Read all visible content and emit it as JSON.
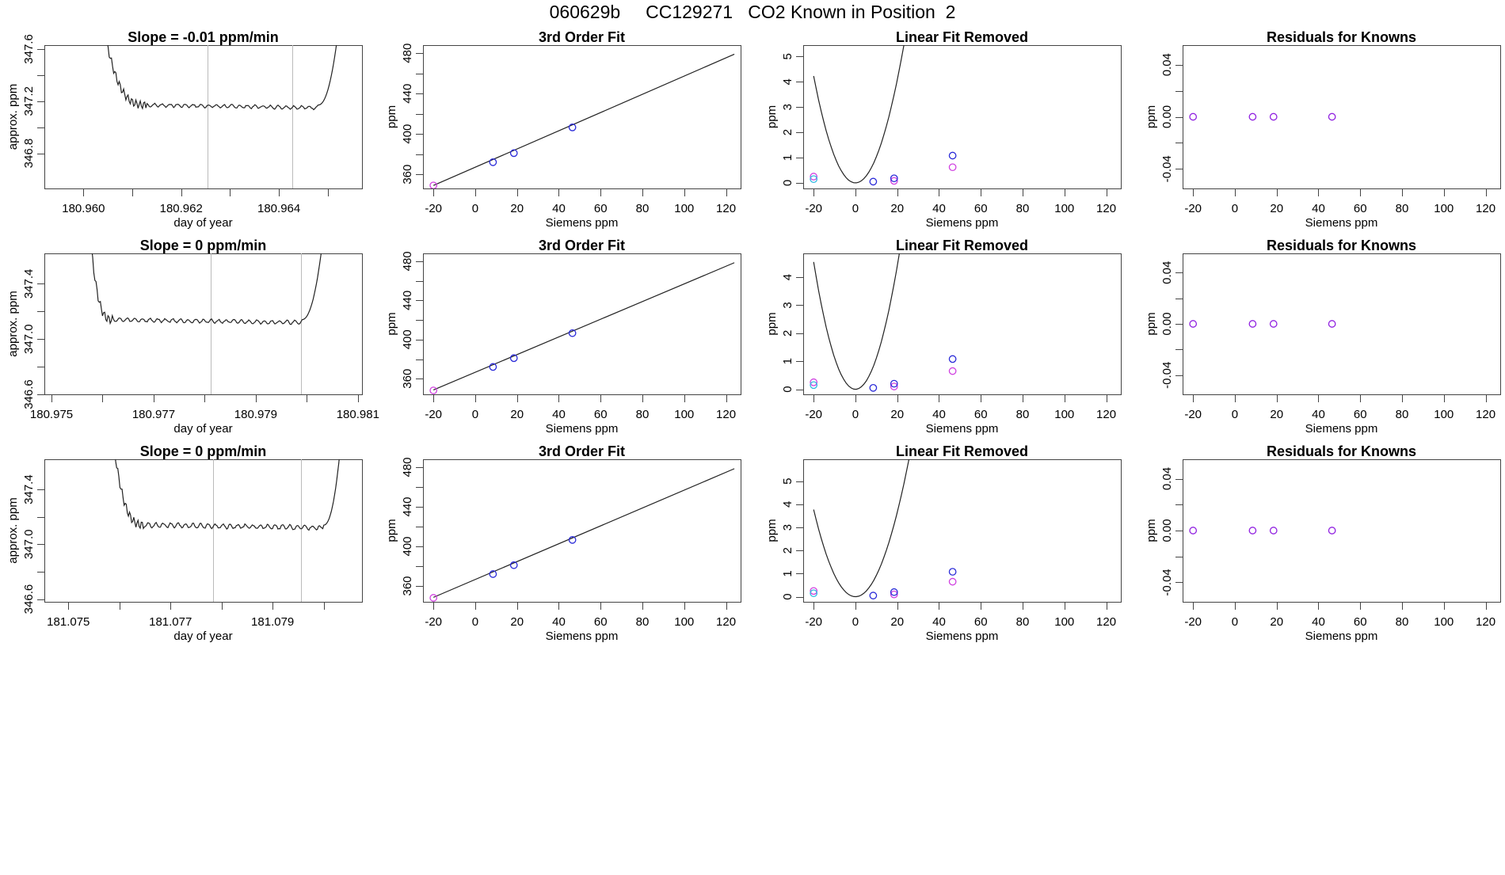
{
  "page_title": "060629b     CC129271   CO2 Known in Position  2",
  "colors": {
    "curve": "#222222",
    "frame": "#444444",
    "vline": "#bbbbbb",
    "blue": "#2a2ad8",
    "magenta": "#d040e0",
    "cyan": "#30b8e0",
    "purple": "#9020e0",
    "red": "#e03030"
  },
  "chart_data": [
    {
      "type": "line",
      "row": 0,
      "col": 0,
      "title": "Slope =  -0.01  ppm/min",
      "xlabel": "day of year",
      "ylabel": "approx. ppm",
      "xlim": [
        180.9592,
        180.9657
      ],
      "ylim": [
        346.53,
        347.63
      ],
      "xticks": [
        180.96,
        180.961,
        180.962,
        180.963,
        180.964,
        180.965
      ],
      "xtick_labels": [
        "180.960",
        "",
        "180.962",
        "",
        "180.964",
        ""
      ],
      "yticks": [
        346.8,
        347.0,
        347.2,
        347.4,
        347.6
      ],
      "ytick_labels": [
        "346.8",
        "",
        "347.2",
        "",
        "347.6"
      ],
      "vlines": [
        180.96254,
        180.96427
      ],
      "baseline": 347.17,
      "noise": 0.012,
      "x_start": 180.9603,
      "x_end": 180.9653,
      "plateau": [
        180.9613,
        180.9648
      ]
    },
    {
      "type": "scatter-line",
      "row": 0,
      "col": 1,
      "title": "3rd Order Fit",
      "xlabel": "Siemens ppm",
      "ylabel": "ppm",
      "xlim": [
        -25,
        127
      ],
      "ylim": [
        346,
        488
      ],
      "xticks": [
        -20,
        0,
        20,
        40,
        60,
        80,
        100,
        120
      ],
      "yticks": [
        360,
        380,
        400,
        420,
        440,
        460,
        480
      ],
      "ytick_labels": [
        "360",
        "",
        "400",
        "",
        "440",
        "",
        "480"
      ],
      "line": {
        "x": [
          -20,
          124
        ],
        "y": [
          349.0,
          479.0
        ]
      },
      "points": [
        {
          "x": -20,
          "y": 349.0,
          "c": "magenta"
        },
        {
          "x": 8.5,
          "y": 372.0,
          "c": "blue"
        },
        {
          "x": 18.5,
          "y": 381.0,
          "c": "blue"
        },
        {
          "x": 46.5,
          "y": 406.5,
          "c": "blue"
        }
      ]
    },
    {
      "type": "scatter-line",
      "row": 0,
      "col": 2,
      "title": "Linear Fit Removed",
      "xlabel": "Siemens ppm",
      "ylabel": "ppm",
      "xlim": [
        -25,
        127
      ],
      "ylim": [
        -0.22,
        5.45
      ],
      "xticks": [
        -20,
        0,
        20,
        40,
        60,
        80,
        100,
        120
      ],
      "yticks": [
        0,
        1,
        2,
        3,
        4,
        5
      ],
      "ytick_labels": [
        "0",
        "1",
        "2",
        "3",
        "4",
        "5"
      ],
      "poly": [
        0.0104,
        -0.00098,
        -5.6e-06
      ],
      "x_range": [
        -20,
        124
      ],
      "points": [
        {
          "x": -20,
          "y": 0.25,
          "c": "magenta"
        },
        {
          "x": -20,
          "y": 0.15,
          "c": "cyan"
        },
        {
          "x": 8.5,
          "y": 0.05,
          "c": "blue"
        },
        {
          "x": 18.5,
          "y": 0.08,
          "c": "magenta"
        },
        {
          "x": 18.5,
          "y": 0.18,
          "c": "blue"
        },
        {
          "x": 46.5,
          "y": 1.08,
          "c": "blue"
        },
        {
          "x": 46.5,
          "y": 0.62,
          "c": "magenta"
        }
      ]
    },
    {
      "type": "scatter",
      "row": 0,
      "col": 3,
      "title": "Residuals for Knowns",
      "xlabel": "Siemens ppm",
      "ylabel": "ppm",
      "xlim": [
        -25,
        127
      ],
      "ylim": [
        -0.055,
        0.055
      ],
      "xticks": [
        -20,
        0,
        20,
        40,
        60,
        80,
        100,
        120
      ],
      "yticks": [
        -0.04,
        -0.02,
        0,
        0.02,
        0.04
      ],
      "ytick_labels": [
        "-0.04",
        "",
        "0.00",
        "",
        "0.04"
      ],
      "points": [
        {
          "x": -20,
          "y": 0,
          "c": "purple"
        },
        {
          "x": 8.5,
          "y": 0,
          "c": "purple"
        },
        {
          "x": 18.5,
          "y": 0,
          "c": "purple"
        },
        {
          "x": 46.5,
          "y": 0,
          "c": "purple"
        }
      ]
    },
    {
      "type": "line",
      "row": 1,
      "col": 0,
      "title": "Slope =  0  ppm/min",
      "xlabel": "day of year",
      "ylabel": "approx. ppm",
      "xlim": [
        180.97486,
        180.98108
      ],
      "ylim": [
        346.6,
        347.62
      ],
      "xticks": [
        180.975,
        180.976,
        180.977,
        180.978,
        180.979,
        180.98,
        180.981
      ],
      "xtick_labels": [
        "180.975",
        "",
        "180.977",
        "",
        "180.979",
        "",
        "180.981"
      ],
      "yticks": [
        346.6,
        346.8,
        347.0,
        347.2,
        347.4
      ],
      "ytick_labels": [
        "346.6",
        "",
        "347.0",
        "",
        "347.4"
      ],
      "vlines": [
        180.97812,
        180.97988
      ],
      "baseline": 347.14,
      "noise": 0.012,
      "x_start": 180.9757,
      "x_end": 180.9804,
      "plateau": [
        180.9762,
        180.9799
      ]
    },
    {
      "type": "scatter-line",
      "row": 1,
      "col": 1,
      "title": "3rd Order Fit",
      "xlabel": "Siemens ppm",
      "ylabel": "ppm",
      "xlim": [
        -25,
        127
      ],
      "ylim": [
        344,
        488
      ],
      "xticks": [
        -20,
        0,
        20,
        40,
        60,
        80,
        100,
        120
      ],
      "yticks": [
        360,
        380,
        400,
        420,
        440,
        460,
        480
      ],
      "ytick_labels": [
        "360",
        "",
        "400",
        "",
        "440",
        "",
        "480"
      ],
      "line": {
        "x": [
          -20,
          124
        ],
        "y": [
          348.5,
          478.5
        ]
      },
      "points": [
        {
          "x": -20,
          "y": 348.0,
          "c": "magenta"
        },
        {
          "x": 8.5,
          "y": 372.0,
          "c": "blue"
        },
        {
          "x": 18.5,
          "y": 381.0,
          "c": "blue"
        },
        {
          "x": 46.5,
          "y": 406.5,
          "c": "blue"
        }
      ]
    },
    {
      "type": "scatter-line",
      "row": 1,
      "col": 2,
      "title": "Linear Fit Removed",
      "xlabel": "Siemens ppm",
      "ylabel": "ppm",
      "xlim": [
        -25,
        127
      ],
      "ylim": [
        -0.18,
        4.85
      ],
      "xticks": [
        -20,
        0,
        20,
        40,
        60,
        80,
        100,
        120
      ],
      "yticks": [
        0,
        1,
        2,
        3,
        4
      ],
      "ytick_labels": [
        "0",
        "1",
        "2",
        "3",
        "4"
      ],
      "poly": [
        0.0112,
        -0.00094,
        -6.5e-06
      ],
      "x_range": [
        -20,
        124
      ],
      "points": [
        {
          "x": -20,
          "y": 0.25,
          "c": "magenta"
        },
        {
          "x": -20,
          "y": 0.15,
          "c": "cyan"
        },
        {
          "x": 8.5,
          "y": 0.05,
          "c": "blue"
        },
        {
          "x": 18.5,
          "y": 0.1,
          "c": "magenta"
        },
        {
          "x": 18.5,
          "y": 0.2,
          "c": "blue"
        },
        {
          "x": 46.5,
          "y": 1.08,
          "c": "blue"
        },
        {
          "x": 46.5,
          "y": 0.65,
          "c": "magenta"
        }
      ]
    },
    {
      "type": "scatter",
      "row": 1,
      "col": 3,
      "title": "Residuals for Knowns",
      "xlabel": "Siemens ppm",
      "ylabel": "ppm",
      "xlim": [
        -25,
        127
      ],
      "ylim": [
        -0.055,
        0.055
      ],
      "xticks": [
        -20,
        0,
        20,
        40,
        60,
        80,
        100,
        120
      ],
      "yticks": [
        -0.04,
        -0.02,
        0,
        0.02,
        0.04
      ],
      "ytick_labels": [
        "-0.04",
        "",
        "0.00",
        "",
        "0.04"
      ],
      "points": [
        {
          "x": -20,
          "y": 0,
          "c": "purple"
        },
        {
          "x": 8.5,
          "y": 0,
          "c": "purple"
        },
        {
          "x": 18.5,
          "y": 0,
          "c": "purple"
        },
        {
          "x": 46.5,
          "y": 0,
          "c": "purple"
        }
      ]
    },
    {
      "type": "line",
      "row": 2,
      "col": 0,
      "title": "Slope =  0  ppm/min",
      "xlabel": "day of year",
      "ylabel": "approx. ppm",
      "xlim": [
        181.07453,
        181.08075
      ],
      "ylim": [
        346.58,
        347.62
      ],
      "xticks": [
        181.075,
        181.076,
        181.077,
        181.078,
        181.079,
        181.08
      ],
      "xtick_labels": [
        "181.075",
        "",
        "181.077",
        "",
        "181.079",
        ""
      ],
      "yticks": [
        346.6,
        346.8,
        347.0,
        347.2,
        347.4
      ],
      "ytick_labels": [
        "346.6",
        "",
        "347.0",
        "",
        "347.4"
      ],
      "vlines": [
        181.07784,
        181.07956
      ],
      "baseline": 347.14,
      "noise": 0.015,
      "x_start": 181.0758,
      "x_end": 181.0804,
      "plateau": [
        181.0765,
        181.08
      ]
    },
    {
      "type": "scatter-line",
      "row": 2,
      "col": 1,
      "title": "3rd Order Fit",
      "xlabel": "Siemens ppm",
      "ylabel": "ppm",
      "xlim": [
        -25,
        127
      ],
      "ylim": [
        344,
        488
      ],
      "xticks": [
        -20,
        0,
        20,
        40,
        60,
        80,
        100,
        120
      ],
      "yticks": [
        360,
        380,
        400,
        420,
        440,
        460,
        480
      ],
      "ytick_labels": [
        "360",
        "",
        "400",
        "",
        "440",
        "",
        "480"
      ],
      "line": {
        "x": [
          -20,
          124
        ],
        "y": [
          348.5,
          478.5
        ]
      },
      "points": [
        {
          "x": -20,
          "y": 348.0,
          "c": "magenta"
        },
        {
          "x": 8.5,
          "y": 372.0,
          "c": "blue"
        },
        {
          "x": 18.5,
          "y": 381.0,
          "c": "blue"
        },
        {
          "x": 46.5,
          "y": 406.5,
          "c": "blue"
        }
      ]
    },
    {
      "type": "scatter-line",
      "row": 2,
      "col": 2,
      "title": "Linear Fit Removed",
      "xlabel": "Siemens ppm",
      "ylabel": "ppm",
      "xlim": [
        -25,
        127
      ],
      "ylim": [
        -0.22,
        5.95
      ],
      "xticks": [
        -20,
        0,
        20,
        40,
        60,
        80,
        100,
        120
      ],
      "yticks": [
        0,
        1,
        2,
        3,
        4,
        5
      ],
      "ytick_labels": [
        "0",
        "1",
        "2",
        "3",
        "4",
        "5"
      ],
      "poly": [
        0.0093,
        -0.00077,
        -4.4e-06
      ],
      "x_range": [
        -20,
        124
      ],
      "points": [
        {
          "x": -20,
          "y": 0.25,
          "c": "magenta"
        },
        {
          "x": -20,
          "y": 0.15,
          "c": "cyan"
        },
        {
          "x": 8.5,
          "y": 0.05,
          "c": "blue"
        },
        {
          "x": 18.5,
          "y": 0.1,
          "c": "magenta"
        },
        {
          "x": 18.5,
          "y": 0.2,
          "c": "blue"
        },
        {
          "x": 46.5,
          "y": 1.08,
          "c": "blue"
        },
        {
          "x": 46.5,
          "y": 0.65,
          "c": "magenta"
        }
      ]
    },
    {
      "type": "scatter",
      "row": 2,
      "col": 3,
      "title": "Residuals for Knowns",
      "xlabel": "Siemens ppm",
      "ylabel": "ppm",
      "xlim": [
        -25,
        127
      ],
      "ylim": [
        -0.055,
        0.055
      ],
      "xticks": [
        -20,
        0,
        20,
        40,
        60,
        80,
        100,
        120
      ],
      "yticks": [
        -0.04,
        -0.02,
        0,
        0.02,
        0.04
      ],
      "ytick_labels": [
        "-0.04",
        "",
        "0.00",
        "",
        "0.04"
      ],
      "points": [
        {
          "x": -20,
          "y": 0,
          "c": "purple"
        },
        {
          "x": 8.5,
          "y": 0,
          "c": "purple"
        },
        {
          "x": 18.5,
          "y": 0,
          "c": "purple"
        },
        {
          "x": 46.5,
          "y": 0,
          "c": "purple"
        }
      ]
    }
  ]
}
